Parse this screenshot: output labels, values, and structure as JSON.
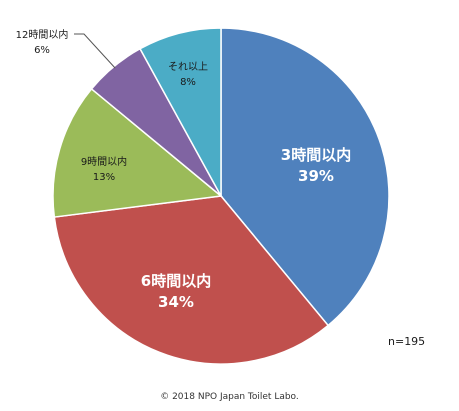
{
  "chart_data": {
    "type": "pie",
    "slices": [
      {
        "label": "3時間以内",
        "value": 39,
        "pct": "39%",
        "color": "#4f81bd"
      },
      {
        "label": "6時間以内",
        "value": 34,
        "pct": "34%",
        "color": "#c0504d"
      },
      {
        "label": "9時間以内",
        "value": 13,
        "pct": "13%",
        "color": "#9bbb59"
      },
      {
        "label": "12時間以内",
        "value": 6,
        "pct": "6%",
        "color": "#8064a2"
      },
      {
        "label": "それ以上",
        "value": 8,
        "pct": "8%",
        "color": "#4bacc6"
      }
    ]
  },
  "sample_size": "n=195",
  "copyright": "© 2018 NPO Japan Toilet Labo."
}
